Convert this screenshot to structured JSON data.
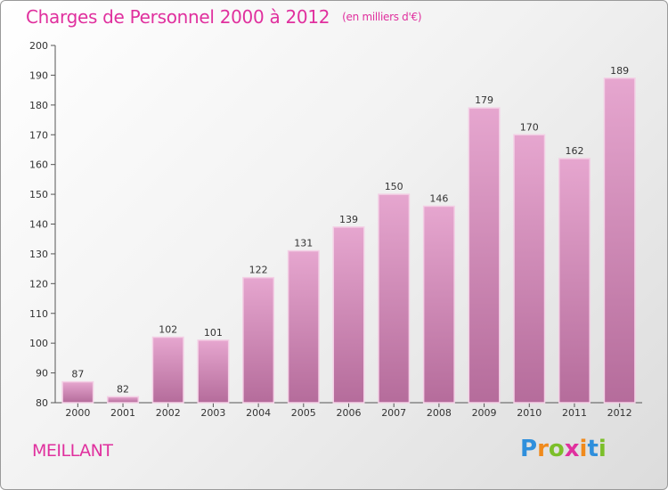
{
  "header": {
    "title": "Charges de Personnel 2000 à 2012",
    "subtitle": "(en milliers d'€)"
  },
  "footer": {
    "commune": "MEILLANT",
    "brand_letters": [
      "P",
      "r",
      "o",
      "x",
      "i",
      "t",
      "i"
    ]
  },
  "colors": {
    "accent": "#e0309e",
    "bar_top": "#e6a6cf",
    "bar_bottom": "#b56c9b",
    "axis": "#555555"
  },
  "chart_data": {
    "type": "bar",
    "title": "Charges de Personnel 2000 à 2012",
    "subtitle": "(en milliers d'€)",
    "categories": [
      "2000",
      "2001",
      "2002",
      "2003",
      "2004",
      "2005",
      "2006",
      "2007",
      "2008",
      "2009",
      "2010",
      "2011",
      "2012"
    ],
    "values": [
      87,
      82,
      102,
      101,
      122,
      131,
      139,
      150,
      146,
      179,
      170,
      162,
      189
    ],
    "ylim": [
      80,
      200
    ],
    "yticks": [
      80,
      90,
      100,
      110,
      120,
      130,
      140,
      150,
      160,
      170,
      180,
      190,
      200
    ],
    "grid": false,
    "legend": "none"
  }
}
